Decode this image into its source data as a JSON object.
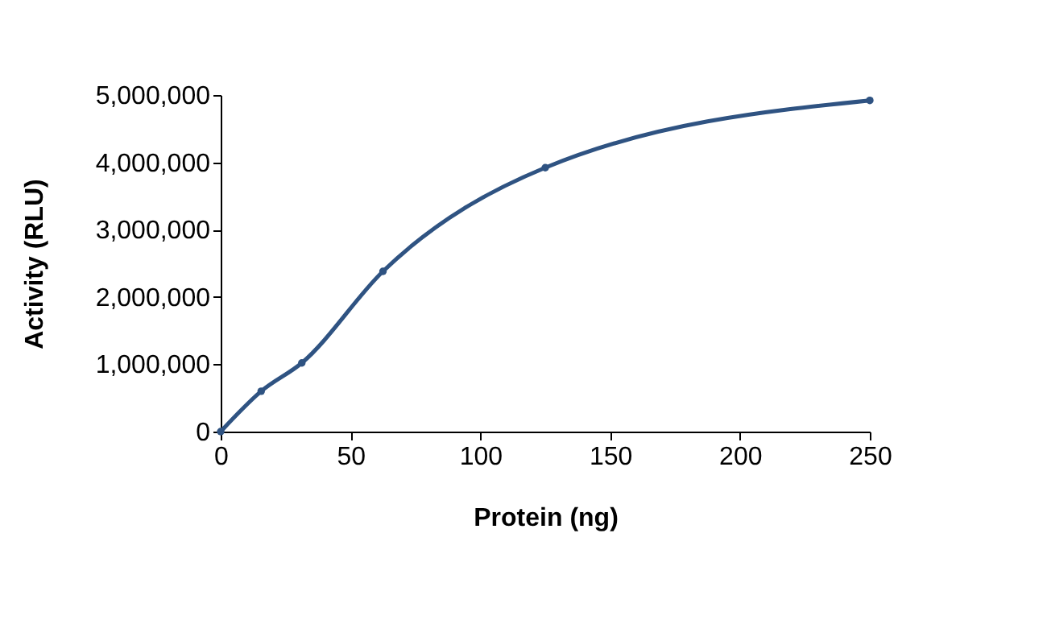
{
  "chart_data": {
    "type": "line",
    "xlabel": "Protein (ng)",
    "ylabel": "Activity (RLU)",
    "x": [
      0,
      15.6,
      31.25,
      62.5,
      125,
      250
    ],
    "series": [
      {
        "color": "#2f5382",
        "values": [
          0,
          600000,
          1020000,
          2380000,
          3920000,
          4920000
        ]
      }
    ],
    "xlim": [
      0,
      250
    ],
    "xticks": [
      0,
      50,
      100,
      150,
      200,
      250
    ],
    "ylim": [
      0,
      5000000
    ],
    "yticks": [
      0,
      {
        "value": 1000000,
        "label": "1,000,000"
      },
      {
        "value": 2000000,
        "label": "2,000,000"
      },
      {
        "value": 3000000,
        "label": "3,000,000"
      },
      {
        "value": 4000000,
        "label": "4,000,000"
      },
      {
        "value": 5000000,
        "label": "5,000,000"
      }
    ],
    "grid": false,
    "marker": "circle",
    "line_style": "solid"
  }
}
